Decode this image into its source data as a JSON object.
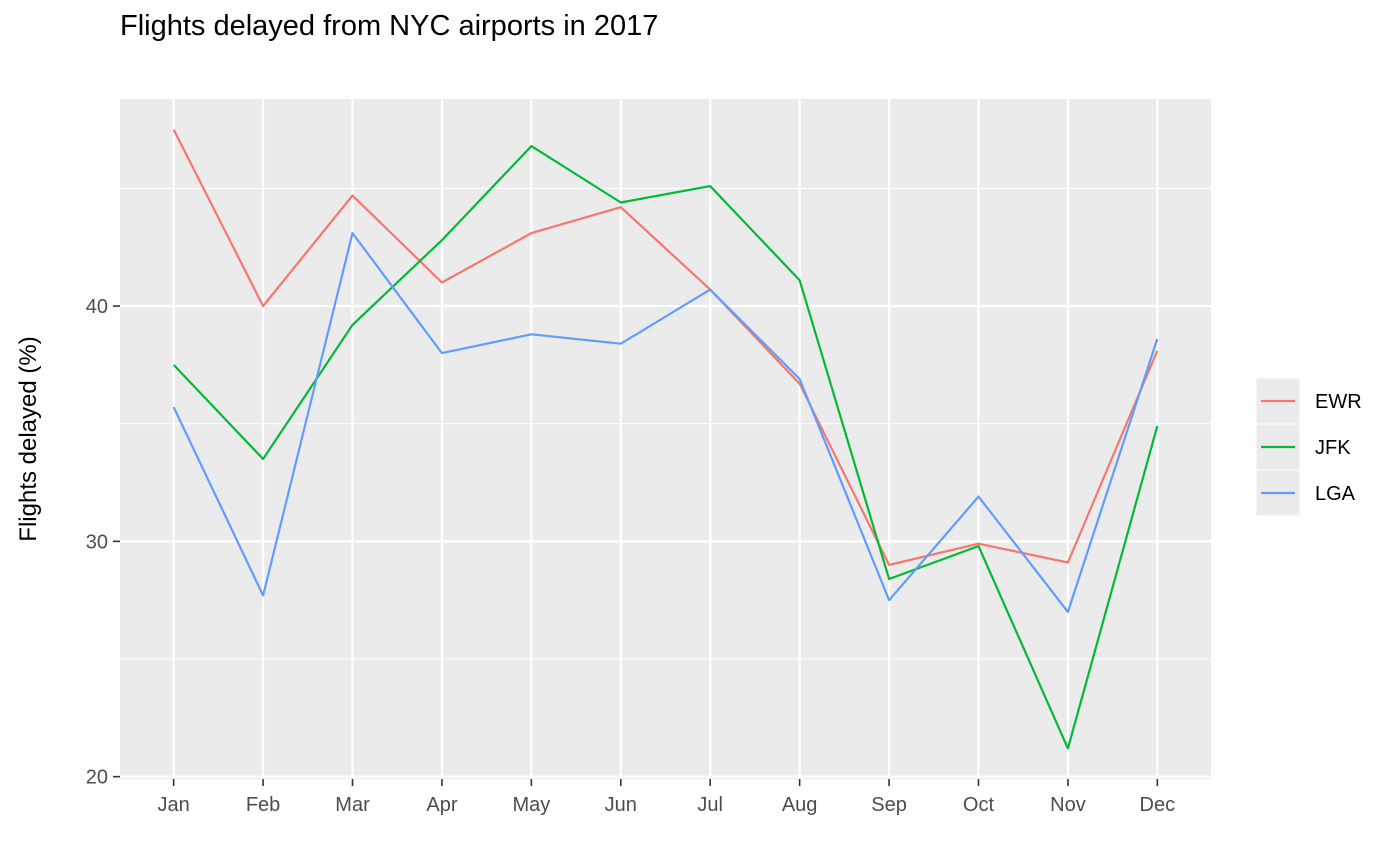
{
  "chart_data": {
    "type": "line",
    "title": "Flights delayed from NYC airports in 2017",
    "xlabel": "",
    "ylabel": "Flights delayed (%)",
    "categories": [
      "Jan",
      "Feb",
      "Mar",
      "Apr",
      "May",
      "Jun",
      "Jul",
      "Aug",
      "Sep",
      "Oct",
      "Nov",
      "Dec"
    ],
    "ylim": [
      19.9,
      48.8
    ],
    "yticks": [
      20,
      30,
      40
    ],
    "grid": true,
    "legend_position": "right",
    "series": [
      {
        "name": "EWR",
        "color": "#F8766D",
        "values": [
          47.5,
          40.0,
          44.7,
          41.0,
          43.1,
          44.2,
          40.7,
          36.7,
          29.0,
          29.9,
          29.1,
          38.1
        ]
      },
      {
        "name": "JFK",
        "color": "#00BA38",
        "values": [
          37.5,
          33.5,
          39.2,
          42.8,
          46.8,
          44.4,
          45.1,
          41.1,
          28.4,
          29.8,
          21.2,
          34.9
        ]
      },
      {
        "name": "LGA",
        "color": "#619CFF",
        "values": [
          35.7,
          27.7,
          43.1,
          38.0,
          38.8,
          38.4,
          40.7,
          36.9,
          27.5,
          31.9,
          27.0,
          38.6
        ]
      }
    ]
  }
}
